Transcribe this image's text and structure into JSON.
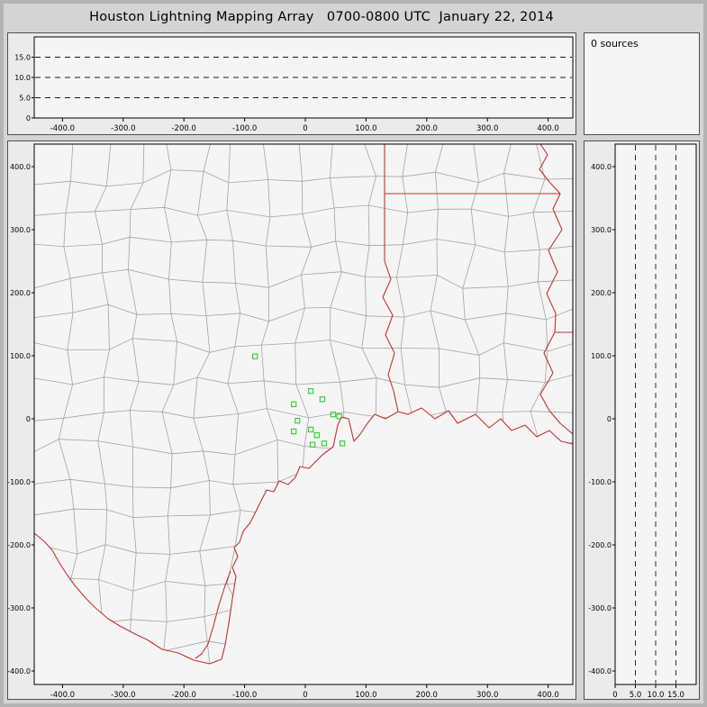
{
  "title": "Houston Lightning Mapping Array   0700-0800 UTC  January 22, 2014",
  "sources_panel": {
    "label": "0 sources"
  },
  "colors": {
    "window_bg": "#d4d4d4",
    "panel_bg": "#ebebeb",
    "plot_bg": "#f5f5f5",
    "county_line": "#a3a3a3",
    "state_line": "#c92f2f",
    "station": "#3ecf3e",
    "dash_line": "#1a1a1a"
  },
  "axes": {
    "ew": {
      "values": [
        -400,
        -300,
        -200,
        -100,
        0,
        100,
        200,
        300,
        400
      ],
      "labels": [
        "-400.0",
        "-300.0",
        "-200.0",
        "-100.0",
        "0",
        "100.0",
        "200.0",
        "300.0",
        "400.0"
      ]
    },
    "ns": {
      "values": [
        400,
        300,
        200,
        100,
        0,
        -100,
        -200,
        -300,
        -400
      ],
      "labels": [
        "400.0",
        "300.0",
        "200.0",
        "100.0",
        "0",
        "-100.0",
        "-200.0",
        "-300.0",
        "-400.0"
      ]
    },
    "alt_top": {
      "values": [
        15,
        10,
        5,
        0
      ],
      "labels": [
        "15.0",
        "10.0",
        "5.0",
        "0"
      ]
    },
    "alt_right": {
      "values": [
        0,
        5,
        10,
        15
      ],
      "labels": [
        "0",
        "5.0",
        "10.0",
        "15.0"
      ]
    }
  },
  "stations_km": [
    [
      -83,
      99
    ],
    [
      9,
      44
    ],
    [
      -19,
      23
    ],
    [
      28,
      31
    ],
    [
      46,
      7
    ],
    [
      -13,
      -3
    ],
    [
      -19,
      -20
    ],
    [
      9,
      -17
    ],
    [
      19,
      -26
    ],
    [
      12,
      -41
    ],
    [
      31,
      -39
    ],
    [
      56,
      4
    ],
    [
      61,
      -39
    ]
  ],
  "chart_data": {
    "type": "scatter",
    "title": "Houston Lightning Mapping Array 0700-0800 UTC January 22, 2014",
    "time_range_utc": "0700-0800",
    "date": "January 22, 2014",
    "source_count": 0,
    "legend_text": "0 sources",
    "panels": [
      {
        "name": "altitude-vs-east-west",
        "x_ticks_km": [
          -400,
          -300,
          -200,
          -100,
          0,
          100,
          200,
          300,
          400
        ],
        "y_ticks_km": [
          0,
          5,
          10,
          15
        ],
        "y_gridlines_km": [
          5,
          10,
          15
        ],
        "grid_style": "dashed",
        "points": []
      },
      {
        "name": "plan-view-map",
        "x_ticks_km": [
          -400,
          -300,
          -200,
          -100,
          0,
          100,
          200,
          300,
          400
        ],
        "y_ticks_km": [
          400,
          300,
          200,
          100,
          0,
          -100,
          -200,
          -300,
          -400
        ],
        "basemap": "Texas / Louisiana county and state boundaries with Gulf of Mexico coastline, Houston at origin",
        "points": [],
        "station_markers_km": [
          [
            -83,
            99
          ],
          [
            9,
            44
          ],
          [
            -19,
            23
          ],
          [
            28,
            31
          ],
          [
            46,
            7
          ],
          [
            -13,
            -3
          ],
          [
            -19,
            -20
          ],
          [
            9,
            -17
          ],
          [
            19,
            -26
          ],
          [
            12,
            -41
          ],
          [
            31,
            -39
          ],
          [
            56,
            4
          ],
          [
            61,
            -39
          ]
        ]
      },
      {
        "name": "altitude-vs-north-south",
        "x_ticks_km": [
          0,
          5,
          10,
          15
        ],
        "y_ticks_km": [
          400,
          300,
          200,
          100,
          0,
          -100,
          -200,
          -300,
          -400
        ],
        "x_gridlines_km": [
          5,
          10,
          15
        ],
        "grid_style": "dashed",
        "points": []
      }
    ]
  }
}
